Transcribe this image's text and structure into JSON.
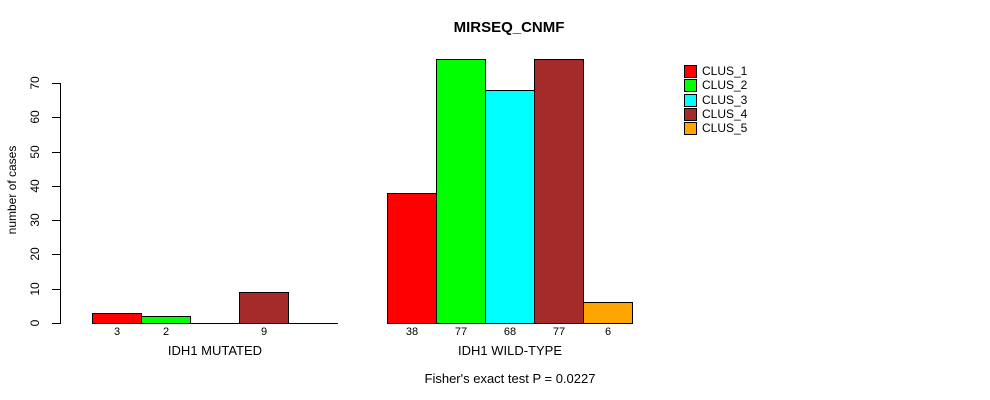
{
  "title": "MIRSEQ_CNMF",
  "y_axis": {
    "label": "number of cases",
    "ticks": [
      0,
      10,
      20,
      30,
      40,
      50,
      60,
      70
    ]
  },
  "legend": {
    "items": [
      {
        "label": "CLUS_1",
        "color": "#FF0000"
      },
      {
        "label": "CLUS_2",
        "color": "#00FF00"
      },
      {
        "label": "CLUS_3",
        "color": "#00FFFF"
      },
      {
        "label": "CLUS_4",
        "color": "#A52A2A"
      },
      {
        "label": "CLUS_5",
        "color": "#FFA500"
      }
    ]
  },
  "footer_note": "Fisher's exact test P = 0.0227",
  "chart_data": {
    "type": "bar",
    "title": "MIRSEQ_CNMF",
    "xlabel": "",
    "ylabel": "number of cases",
    "ylim": [
      0,
      77
    ],
    "y_ticks": [
      0,
      10,
      20,
      30,
      40,
      50,
      60,
      70
    ],
    "grid": false,
    "legend_position": "top-right",
    "categories": [
      "IDH1 MUTATED",
      "IDH1 WILD-TYPE"
    ],
    "series": [
      {
        "name": "CLUS_1",
        "color": "#FF0000",
        "values": [
          3,
          38
        ]
      },
      {
        "name": "CLUS_2",
        "color": "#00FF00",
        "values": [
          2,
          77
        ]
      },
      {
        "name": "CLUS_3",
        "color": "#00FFFF",
        "values": [
          0,
          68
        ]
      },
      {
        "name": "CLUS_4",
        "color": "#A52A2A",
        "values": [
          9,
          77
        ]
      },
      {
        "name": "CLUS_5",
        "color": "#FFA500",
        "values": [
          0,
          6
        ]
      }
    ],
    "bar_value_labels": {
      "IDH1 MUTATED": [
        3,
        2,
        null,
        9,
        null
      ],
      "IDH1 WILD-TYPE": [
        38,
        77,
        68,
        77,
        6
      ]
    },
    "annotation": "Fisher's exact test P = 0.0227"
  }
}
